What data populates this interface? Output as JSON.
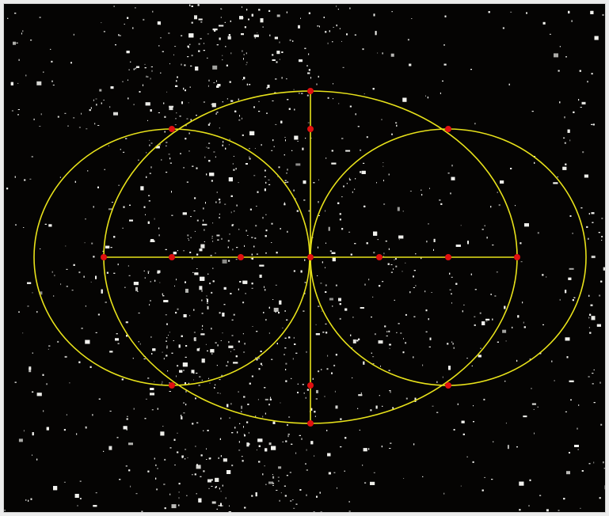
{
  "image": {
    "background_color": "#050403",
    "frame_color": "#ececec",
    "speckle_color": "#f2f2ee",
    "overlay_line_color": "#e8e21a",
    "marker_color": "#e01010"
  },
  "construction": {
    "description_counts": {
      "circles": 3,
      "axis_lines": 2,
      "marker_points": 17
    }
  }
}
